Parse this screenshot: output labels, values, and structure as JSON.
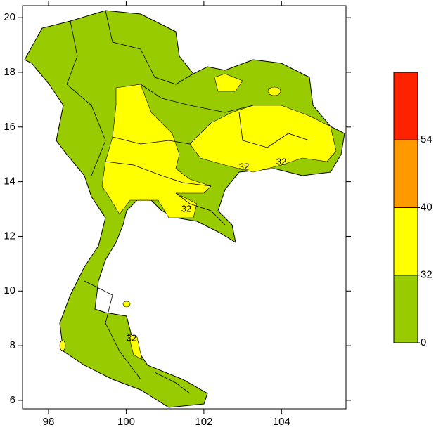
{
  "map": {
    "x_axis": {
      "lim": [
        97.33,
        105.66
      ],
      "ticks": [
        98,
        100,
        102,
        104
      ]
    },
    "y_axis": {
      "lim": [
        5.69,
        20.44
      ],
      "ticks": [
        6,
        8,
        10,
        12,
        14,
        16,
        18,
        20
      ]
    },
    "colorbar": {
      "levels": [
        0,
        32,
        40,
        54
      ],
      "colors": [
        "#99cc00",
        "#ffff00",
        "#ff9900",
        "#ff2200"
      ]
    },
    "contour_labels": [
      32,
      32,
      32,
      32
    ]
  }
}
